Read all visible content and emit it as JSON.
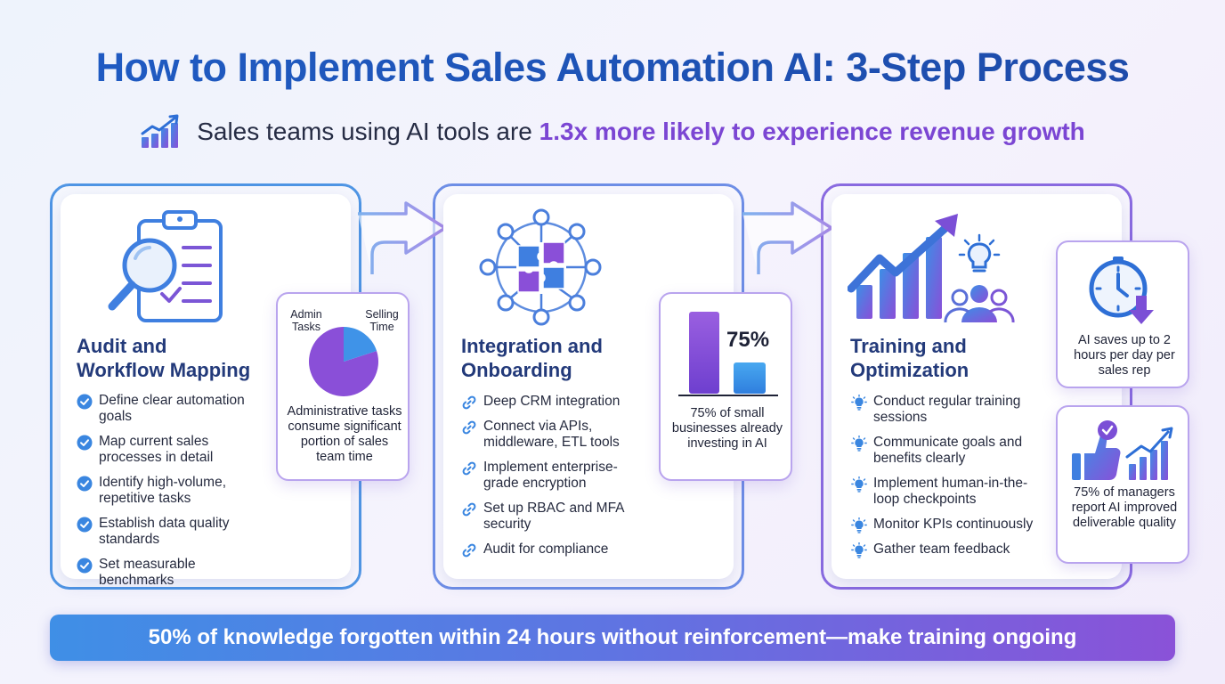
{
  "title": "How to Implement Sales Automation AI: 3-Step Process",
  "subtitle": {
    "prefix": "Sales teams using AI tools are ",
    "highlight": "1.3x more likely to experience revenue growth",
    "icon": "growth-chart-icon"
  },
  "steps": [
    {
      "title_line1": "Audit and",
      "title_line2": "Workflow Mapping",
      "icon": "clipboard-magnifier-icon",
      "bullet_icon": "check-circle-icon",
      "items": [
        "Define clear automation goals",
        "Map current sales processes in detail",
        "Identify high-volume, repetitive tasks",
        "Establish data quality standards",
        "Set measurable benchmarks"
      ],
      "stat": {
        "pie_label_left": "Admin Tasks",
        "pie_label_right": "Selling Time",
        "pie_admin_fraction": 0.8,
        "pie_selling_fraction": 0.2,
        "text": "Administrative tasks consume significant portion of sales team time"
      }
    },
    {
      "title_line1": "Integration and",
      "title_line2": "Onboarding",
      "icon": "puzzle-network-icon",
      "bullet_icon": "link-icon",
      "items": [
        "Deep CRM integration",
        "Connect via APIs, middleware, ETL tools",
        "Implement enterprise-grade encryption",
        "Set up RBAC and MFA security",
        "Audit for compliance"
      ],
      "stat": {
        "value_label": "75%",
        "bar_fraction_tall": 1.0,
        "bar_fraction_short": 0.38,
        "text": "75% of small businesses already investing in AI"
      }
    },
    {
      "title_line1": "Training and",
      "title_line2": "Optimization",
      "icon": "chart-team-lightbulb-icon",
      "bullet_icon": "lightbulb-icon",
      "items": [
        "Conduct regular training sessions",
        "Communicate goals and benefits clearly",
        "Implement human-in-the-loop checkpoints",
        "Monitor KPIs continuously",
        "Gather team feedback"
      ],
      "stats": [
        {
          "icon": "clock-down-arrow-icon",
          "text": "AI saves up to 2 hours per day per sales rep"
        },
        {
          "icon": "thumbs-up-chart-icon",
          "text": "75% of managers report AI improved deliverable quality"
        }
      ]
    }
  ],
  "banner": "50% of knowledge forgotten within 24 hours without reinforcement—make training ongoing",
  "colors": {
    "blue": "#3f8fe6",
    "purple": "#8a52d8",
    "title": "#1e56b8",
    "highlight": "#7b46d3"
  }
}
